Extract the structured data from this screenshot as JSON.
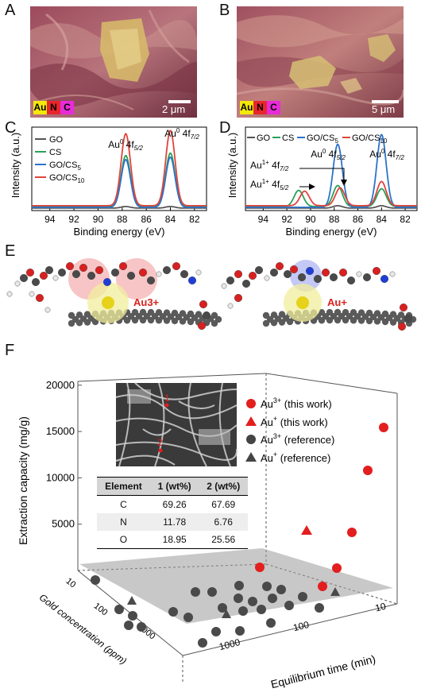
{
  "panels": {
    "A": {
      "label": "A",
      "scale_bar": "2 μm",
      "elements": [
        {
          "symbol": "Au",
          "color": "#f5e90a"
        },
        {
          "symbol": "N",
          "color": "#e8262b"
        },
        {
          "symbol": "C",
          "color": "#e72bd8"
        }
      ]
    },
    "B": {
      "label": "B",
      "scale_bar": "5 μm",
      "elements": [
        {
          "symbol": "Au",
          "color": "#f5e90a"
        },
        {
          "symbol": "N",
          "color": "#e8262b"
        },
        {
          "symbol": "C",
          "color": "#e72bd8"
        }
      ]
    },
    "C": {
      "label": "C"
    },
    "D": {
      "label": "D"
    },
    "E": {
      "label": "E",
      "left_ion": "Au3+",
      "right_ion": "Au+"
    },
    "F": {
      "label": "F"
    }
  },
  "chart_data": [
    {
      "id": "C",
      "type": "line",
      "xlabel": "Binding energy (eV)",
      "ylabel": "Intensity (a.u.)",
      "xlim": [
        95.5,
        81
      ],
      "x_reversed": true,
      "xticks": [
        94,
        92,
        90,
        88,
        86,
        84,
        82
      ],
      "annotations": [
        {
          "text": "Au0 4f5/2",
          "main": "Au",
          "sup": "0",
          "rest": " 4f",
          "sub": "5/2",
          "x": 87.7
        },
        {
          "text": "Au0 4f7/2",
          "main": "Au",
          "sup": "0",
          "rest": " 4f",
          "sub": "7/2",
          "x": 84.0
        }
      ],
      "series": [
        {
          "name": "GO",
          "legend_main": "GO",
          "legend_sub": "",
          "color": "#555555",
          "peaks": [
            [
              87.7,
              0.02
            ],
            [
              84.0,
              0.02
            ]
          ],
          "base": 0.03
        },
        {
          "name": "CS",
          "legend_main": "CS",
          "legend_sub": "",
          "color": "#2aa05a",
          "peaks": [
            [
              87.7,
              0.63
            ],
            [
              84.0,
              0.66
            ]
          ],
          "base": 0.05
        },
        {
          "name": "GO/CS5",
          "legend_main": "GO/CS",
          "legend_sub": "5",
          "color": "#2c73c9",
          "peaks": [
            [
              87.7,
              0.59
            ],
            [
              84.0,
              0.62
            ]
          ],
          "base": 0.04
        },
        {
          "name": "GO/CS10",
          "legend_main": "GO/CS",
          "legend_sub": "10",
          "color": "#e0443b",
          "peaks": [
            [
              87.7,
              0.89
            ],
            [
              84.0,
              0.93
            ]
          ],
          "base": 0.06
        }
      ]
    },
    {
      "id": "D",
      "type": "line",
      "xlabel": "Binding energy (eV)",
      "ylabel": "Intensity (a.u.)",
      "xlim": [
        95.5,
        81
      ],
      "x_reversed": true,
      "xticks": [
        94,
        92,
        90,
        88,
        86,
        84,
        82
      ],
      "annotations": [
        {
          "text": "Au1+ 4f7/2",
          "main": "Au",
          "sup": "1+",
          "rest": " 4f",
          "sub": "7/2"
        },
        {
          "text": "Au1+ 4f5/2",
          "main": "Au",
          "sup": "1+",
          "rest": " 4f",
          "sub": "5/2"
        },
        {
          "text": "Au0 4f5/2",
          "main": "Au",
          "sup": "0",
          "rest": " 4f",
          "sub": "5/2"
        },
        {
          "text": "Au0 4f7/2",
          "main": "Au",
          "sup": "0",
          "rest": " 4f",
          "sub": "7/2"
        }
      ],
      "series": [
        {
          "name": "GO",
          "legend_main": "GO",
          "legend_sub": "",
          "color": "#555555",
          "peaks": [
            [
              87.7,
              0.03
            ],
            [
              84.0,
              0.03
            ]
          ],
          "base": 0.03
        },
        {
          "name": "CS",
          "legend_main": "CS",
          "legend_sub": "",
          "color": "#2aa05a",
          "peaks": [
            [
              91.0,
              0.2
            ],
            [
              87.7,
              0.26
            ],
            [
              84.0,
              0.22
            ]
          ],
          "base": 0.05
        },
        {
          "name": "GO/CS5",
          "legend_main": "GO/CS",
          "legend_sub": "5",
          "color": "#2c73c9",
          "peaks": [
            [
              87.7,
              0.78
            ],
            [
              84.0,
              0.9
            ]
          ],
          "base": 0.04
        },
        {
          "name": "GO/CS10",
          "legend_main": "GO/CS",
          "legend_sub": "10",
          "color": "#e0443b",
          "peaks": [
            [
              90.5,
              0.18
            ],
            [
              87.5,
              0.22
            ],
            [
              84.0,
              0.3
            ]
          ],
          "base": 0.06
        }
      ]
    },
    {
      "id": "F",
      "type": "scatter",
      "zlabel": "Extraction capacity (mg/g)",
      "xlabel": "Equilibrium time (min)",
      "ylabel": "Gold concentration (ppm)",
      "zticks": [
        5000,
        10000,
        15000,
        20000
      ],
      "xticks": [
        "10",
        "100",
        "1000"
      ],
      "yticks": [
        "10",
        "100",
        "1000"
      ],
      "legend": [
        {
          "text": "Au3+ (this work)",
          "main": "Au",
          "sup": "3+",
          "rest": " (this work)",
          "marker": "circle",
          "color": "#e31e1e"
        },
        {
          "text": "Au+ (this work)",
          "main": "Au",
          "sup": "+",
          "rest": " (this work)",
          "marker": "triangle",
          "color": "#e31e1e"
        },
        {
          "text": "Au3+ (reference)",
          "main": "Au",
          "sup": "3+",
          "rest": " (reference)",
          "marker": "circle",
          "color": "#444444"
        },
        {
          "text": "Au+ (reference)",
          "main": "Au",
          "sup": "+",
          "rest": " (reference)",
          "marker": "triangle",
          "color": "#444444"
        }
      ],
      "inset_points": [
        "1",
        "2"
      ],
      "table": {
        "headers": [
          "Element",
          "1 (wt%)",
          "2 (wt%)"
        ],
        "rows": [
          [
            "C",
            "69.26",
            "67.69"
          ],
          [
            "N",
            "11.78",
            "6.76"
          ],
          [
            "O",
            "18.95",
            "25.56"
          ]
        ]
      }
    }
  ]
}
